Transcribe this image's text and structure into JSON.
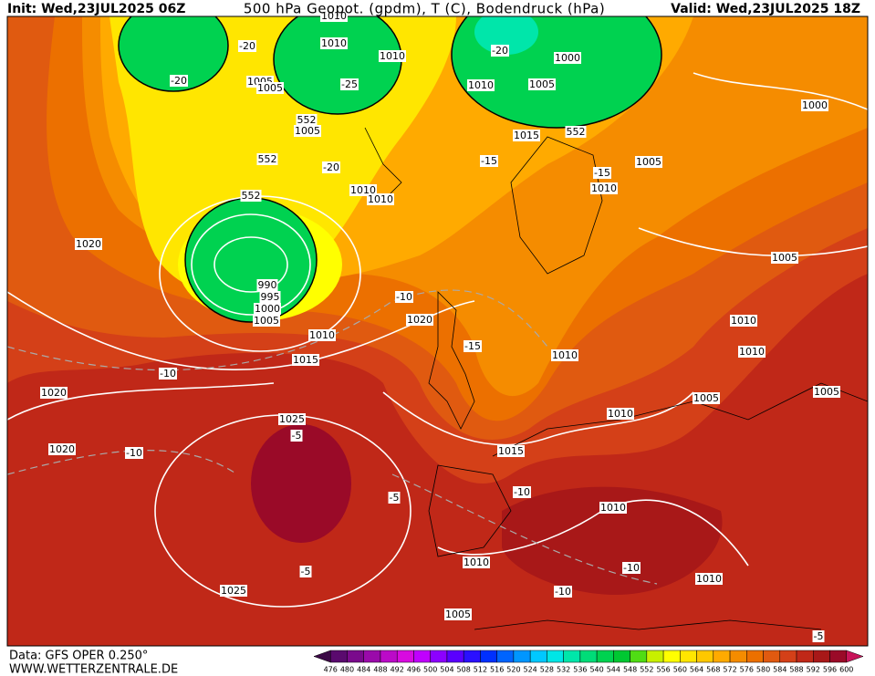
{
  "header": {
    "init": "Init: Wed,23JUL2025 06Z",
    "title": "500 hPa Geopot. (gpdm), T (C), Bodendruck (hPa)",
    "valid": "Valid: Wed,23JUL2025 18Z"
  },
  "footer": {
    "source": "Data: GFS OPER 0.250°",
    "site": "WWW.WETTERZENTRALE.DE"
  },
  "colorbar": {
    "ticks": [
      476,
      480,
      484,
      488,
      492,
      496,
      500,
      504,
      508,
      512,
      516,
      520,
      524,
      528,
      532,
      536,
      540,
      544,
      548,
      552,
      556,
      560,
      564,
      568,
      572,
      576,
      580,
      584,
      588,
      592,
      596,
      600
    ],
    "colors": [
      "#3c0a46",
      "#5a0a6e",
      "#7a0a8c",
      "#9a0aaa",
      "#bb0ac8",
      "#d80ae0",
      "#c000ff",
      "#8c00ff",
      "#5a00ff",
      "#2a10ff",
      "#0030ff",
      "#0064ff",
      "#0096ff",
      "#00c8ff",
      "#00e6e6",
      "#00e6aa",
      "#00dc78",
      "#00d250",
      "#00c832",
      "#50dc14",
      "#c8f000",
      "#ffff00",
      "#ffe600",
      "#ffc800",
      "#ffaa00",
      "#f58c00",
      "#ec7000",
      "#e05a10",
      "#d44018",
      "#c02818",
      "#a81818",
      "#9a0a28",
      "#c8145a"
    ]
  },
  "map": {
    "labels": [
      "1010",
      "1010",
      "1010",
      "1005",
      "1005",
      "1000",
      "1005",
      "1005",
      "1010",
      "1015",
      "1005",
      "1010",
      "1010",
      "1010",
      "1020",
      "1020",
      "1020",
      "1020",
      "1015",
      "1010",
      "1025",
      "1025",
      "1010",
      "1015",
      "1010",
      "1010",
      "1005",
      "1005",
      "1010",
      "1010",
      "1005",
      "1000",
      "990",
      "995",
      "1000",
      "1005",
      "-20",
      "-20",
      "-25",
      "-20",
      "-15",
      "-15",
      "-20",
      "-10",
      "-15",
      "-10",
      "-10",
      "-5",
      "-5",
      "-5",
      "-10",
      "-10",
      "-10",
      "-5",
      "552",
      "552",
      "552",
      "552",
      "1010",
      "1005",
      "1010"
    ]
  }
}
